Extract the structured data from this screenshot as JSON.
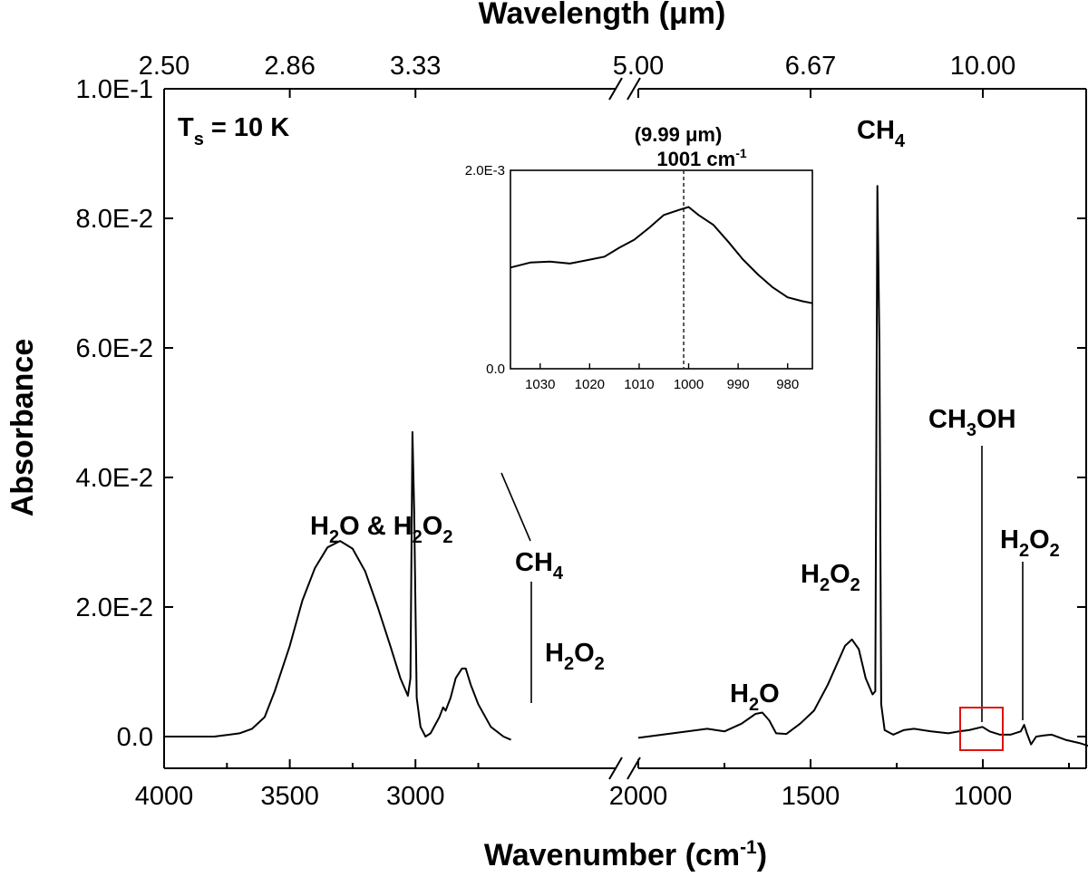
{
  "chart_data": {
    "type": "line",
    "title_top": "Wavelength (μm)",
    "xlabel": "Wavenumber (cm",
    "xlabel_sup": "-1",
    "xlabel_end": ")",
    "ylabel": "Absorbance",
    "temperature_label": "T",
    "temperature_sub": "s",
    "temperature_value": " = 10 K",
    "x_ticks_left": [
      "4000",
      "3500",
      "3000"
    ],
    "x_ticks_right": [
      "2000",
      "1500",
      "1000"
    ],
    "top_ticks": [
      {
        "wavenumber": 4000,
        "label": "2.50"
      },
      {
        "wavenumber": 3500,
        "label": "2.86"
      },
      {
        "wavenumber": 3000,
        "label": "3.33"
      },
      {
        "wavenumber": 2000,
        "label": "5.00"
      },
      {
        "wavenumber": 1500,
        "label": "6.67"
      },
      {
        "wavenumber": 1000,
        "label": "10.00"
      }
    ],
    "y_ticks": [
      "0.0",
      "2.0E-2",
      "4.0E-2",
      "6.0E-2",
      "8.0E-2",
      "1.0E-1"
    ],
    "ylim": [
      -0.005,
      0.1
    ],
    "x_segments": [
      {
        "range": [
          4000,
          2200
        ]
      },
      {
        "range": [
          2000,
          700
        ]
      }
    ],
    "series": [
      {
        "name": "spectrum segment 1",
        "points": [
          [
            4000,
            0
          ],
          [
            3800,
            0
          ],
          [
            3700,
            0.0005
          ],
          [
            3650,
            0.0012
          ],
          [
            3600,
            0.003
          ],
          [
            3560,
            0.007
          ],
          [
            3500,
            0.014
          ],
          [
            3450,
            0.021
          ],
          [
            3400,
            0.026
          ],
          [
            3350,
            0.0292
          ],
          [
            3300,
            0.0302
          ],
          [
            3250,
            0.029
          ],
          [
            3200,
            0.0255
          ],
          [
            3150,
            0.02
          ],
          [
            3100,
            0.014
          ],
          [
            3060,
            0.009
          ],
          [
            3030,
            0.0063
          ],
          [
            3020,
            0.009
          ],
          [
            3012,
            0.047
          ],
          [
            3005,
            0.035
          ],
          [
            2995,
            0.006
          ],
          [
            2980,
            0.0015
          ],
          [
            2960,
            0
          ],
          [
            2940,
            0.0005
          ],
          [
            2905,
            0.003
          ],
          [
            2890,
            0.0045
          ],
          [
            2880,
            0.004
          ],
          [
            2860,
            0.006
          ],
          [
            2840,
            0.009
          ],
          [
            2815,
            0.0105
          ],
          [
            2800,
            0.0105
          ],
          [
            2780,
            0.008
          ],
          [
            2750,
            0.005
          ],
          [
            2700,
            0.0015
          ],
          [
            2650,
            0
          ],
          [
            2620,
            -0.0005
          ]
        ]
      },
      {
        "name": "spectrum segment 2",
        "points": [
          [
            2000,
            -0.0002
          ],
          [
            1900,
            0.0005
          ],
          [
            1800,
            0.0012
          ],
          [
            1750,
            0.0008
          ],
          [
            1700,
            0.002
          ],
          [
            1660,
            0.0035
          ],
          [
            1640,
            0.0037
          ],
          [
            1620,
            0.0025
          ],
          [
            1600,
            0.0005
          ],
          [
            1570,
            0.0004
          ],
          [
            1530,
            0.002
          ],
          [
            1490,
            0.004
          ],
          [
            1450,
            0.008
          ],
          [
            1400,
            0.014
          ],
          [
            1380,
            0.015
          ],
          [
            1360,
            0.0135
          ],
          [
            1340,
            0.009
          ],
          [
            1320,
            0.0065
          ],
          [
            1312,
            0.007
          ],
          [
            1306,
            0.085
          ],
          [
            1300,
            0.06
          ],
          [
            1295,
            0.005
          ],
          [
            1285,
            0.001
          ],
          [
            1260,
            0.0003
          ],
          [
            1230,
            0.001
          ],
          [
            1200,
            0.0012
          ],
          [
            1150,
            0.0008
          ],
          [
            1100,
            0.0005
          ],
          [
            1070,
            0.0008
          ],
          [
            1040,
            0.001
          ],
          [
            1001,
            0.0015
          ],
          [
            980,
            0.0008
          ],
          [
            950,
            0.0003
          ],
          [
            920,
            0.0003
          ],
          [
            890,
            0.0008
          ],
          [
            880,
            0.0018
          ],
          [
            872,
            0.0005
          ],
          [
            860,
            -0.0012
          ],
          [
            845,
            0
          ],
          [
            820,
            0.0002
          ],
          [
            800,
            0.0003
          ],
          [
            760,
            -0.0005
          ],
          [
            720,
            -0.001
          ],
          [
            690,
            -0.0015
          ]
        ]
      }
    ],
    "annotations": [
      {
        "base": "H",
        "sub": "2",
        "mid": "O & H",
        "sub2": "2",
        "tail": "O",
        "sub3": "2"
      },
      {
        "base": "CH",
        "sub": "4",
        "mid": "",
        "sub2": "",
        "tail": "",
        "sub3": ""
      },
      {
        "base": "H",
        "sub": "2",
        "mid": "O",
        "sub2": "2",
        "tail": "",
        "sub3": ""
      },
      {
        "base": "H",
        "sub": "2",
        "mid": "O",
        "sub2": "",
        "tail": "",
        "sub3": ""
      },
      {
        "base": "H",
        "sub": "2",
        "mid": "O",
        "sub2": "2",
        "tail": "",
        "sub3": ""
      },
      {
        "base": "CH",
        "sub": "4",
        "mid": "",
        "sub2": "",
        "tail": "",
        "sub3": ""
      },
      {
        "base": "CH",
        "sub": "3",
        "mid": "OH",
        "sub2": "",
        "tail": "",
        "sub3": ""
      },
      {
        "base": "H",
        "sub": "2",
        "mid": "O",
        "sub2": "2",
        "tail": "",
        "sub3": ""
      }
    ],
    "inset": {
      "type": "line",
      "label_wavelength": "(9.99 μm)",
      "label_wavenumber": "1001 cm",
      "label_sup": "-1",
      "marker_wavenumber": 1001,
      "xlim": [
        1036,
        975
      ],
      "ylim": [
        0,
        0.002
      ],
      "x_ticks": [
        "1030",
        "1020",
        "1010",
        "1000",
        "990",
        "980"
      ],
      "y_ticks": [
        "0.0",
        "2.0E-3"
      ],
      "points": [
        [
          1036,
          0.00102
        ],
        [
          1032,
          0.00107
        ],
        [
          1028,
          0.00108
        ],
        [
          1024,
          0.00106
        ],
        [
          1020,
          0.0011
        ],
        [
          1017,
          0.00113
        ],
        [
          1014,
          0.00122
        ],
        [
          1011,
          0.0013
        ],
        [
          1008,
          0.00142
        ],
        [
          1005,
          0.00155
        ],
        [
          1002,
          0.0016
        ],
        [
          1000,
          0.00163
        ],
        [
          998,
          0.00155
        ],
        [
          995,
          0.00145
        ],
        [
          992,
          0.00128
        ],
        [
          989,
          0.0011
        ],
        [
          986,
          0.00095
        ],
        [
          983,
          0.00082
        ],
        [
          980,
          0.00072
        ],
        [
          977,
          0.00068
        ],
        [
          975,
          0.00066
        ]
      ]
    }
  }
}
